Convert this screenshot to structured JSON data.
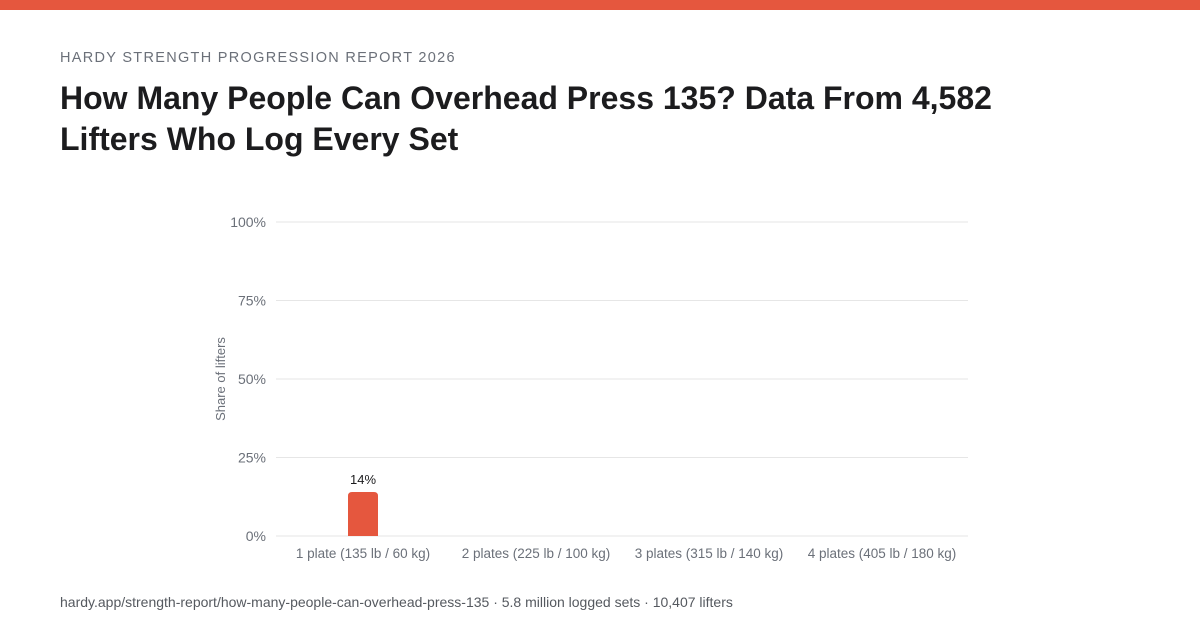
{
  "header": {
    "eyebrow": "HARDY STRENGTH PROGRESSION REPORT 2026",
    "title": "How Many People Can Overhead Press 135? Data From 4,582 Lifters Who Log Every Set"
  },
  "colors": {
    "accent": "#e5573e",
    "grid": "#e6e6e6",
    "tick_text": "#6b7079"
  },
  "chart_data": {
    "type": "bar",
    "categories": [
      "1 plate (135 lb / 60 kg)",
      "2 plates (225 lb / 100 kg)",
      "3 plates (315 lb / 140 kg)",
      "4 plates (405 lb / 180 kg)"
    ],
    "values": [
      14,
      0,
      0,
      0
    ],
    "data_labels": [
      "14%",
      "",
      "",
      ""
    ],
    "ylabel": "Share of lifters",
    "xlabel": "",
    "ylim": [
      0,
      100
    ],
    "yticks": [
      0,
      25,
      50,
      75,
      100
    ],
    "ytick_labels": [
      "0%",
      "25%",
      "50%",
      "75%",
      "100%"
    ],
    "grid": true,
    "legend": "none"
  },
  "footer": {
    "text": "hardy.app/strength-report/how-many-people-can-overhead-press-135 · 5.8 million logged sets · 10,407 lifters"
  }
}
